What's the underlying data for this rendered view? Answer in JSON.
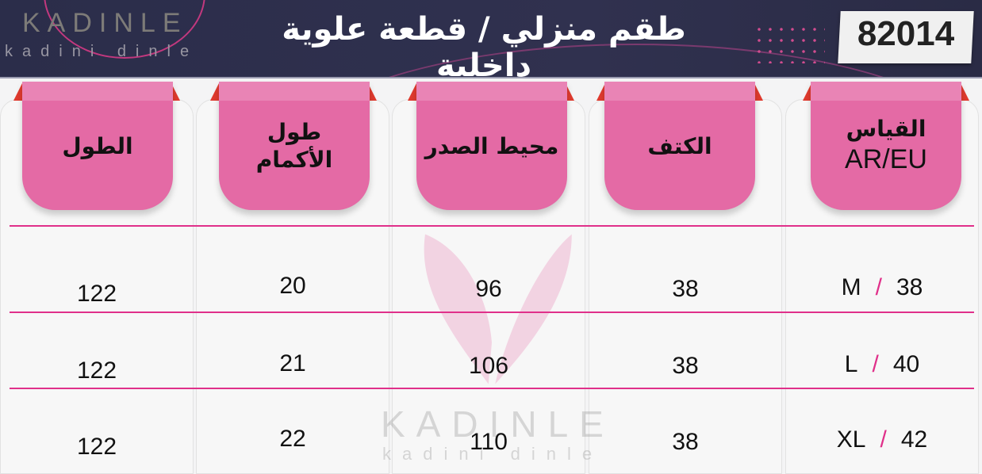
{
  "header": {
    "brand": "KADINLE",
    "brand_tagline": "kadini dinle",
    "title": "طقم منزلي / قطعة علوية داخلية",
    "product_code": "82014"
  },
  "columns": [
    {
      "key": "length",
      "label": "الطول"
    },
    {
      "key": "sleeve",
      "label": "طول",
      "label2": "الأكمام"
    },
    {
      "key": "chest",
      "label": "محيط الصدر"
    },
    {
      "key": "shoulder",
      "label": "الكتف"
    },
    {
      "key": "size",
      "label": "القياس",
      "label2": "AR/EU"
    }
  ],
  "rows": [
    {
      "length": "122",
      "sleeve": "20",
      "chest": "96",
      "shoulder": "38",
      "size_letter": "M",
      "size_num": "38"
    },
    {
      "length": "122",
      "sleeve": "21",
      "chest": "106",
      "shoulder": "38",
      "size_letter": "L",
      "size_num": "40"
    },
    {
      "length": "122",
      "sleeve": "22",
      "chest": "110",
      "shoulder": "38",
      "size_letter": "XL",
      "size_num": "42"
    }
  ],
  "watermark": {
    "brand": "KADINLE",
    "tagline": "kadini dinle"
  },
  "colors": {
    "header_bg": "#2d2e4a",
    "tab_pink": "#e46aa5",
    "line_pink": "#e0308a",
    "fold_red": "#e03a2e"
  }
}
